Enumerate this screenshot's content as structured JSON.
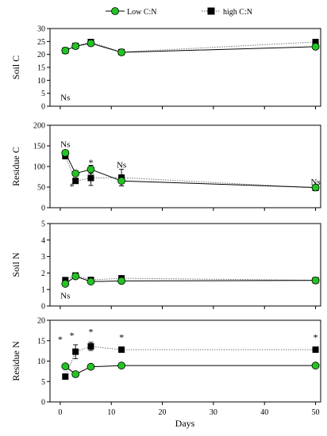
{
  "legend": {
    "placement": "top-center",
    "entries": [
      {
        "label": "Low C:N",
        "marker": "circle",
        "color": "#22c422",
        "line": "solid"
      },
      {
        "label": "high C:N",
        "marker": "square",
        "color": "#000000",
        "line": "dotted"
      }
    ]
  },
  "chart_data": [
    {
      "type": "line",
      "ylabel": "Soil C",
      "ylim": [
        0,
        30
      ],
      "yticks": [
        0,
        5,
        10,
        15,
        20,
        25,
        30
      ],
      "xlim": [
        -2,
        51
      ],
      "series": [
        {
          "name": "Low C:N",
          "x": [
            1,
            3,
            6,
            12,
            50
          ],
          "y": [
            21.5,
            23.2,
            24.3,
            20.8,
            23.0
          ],
          "err": [
            0.8,
            0.6,
            0.8,
            0.7,
            0.7
          ]
        },
        {
          "name": "high C:N",
          "x": [
            1,
            3,
            6,
            12,
            50
          ],
          "y": [
            21.5,
            23.3,
            24.8,
            20.9,
            24.8
          ],
          "err": [
            0.9,
            0.7,
            0.9,
            0.8,
            1.0
          ]
        }
      ],
      "annotations": [
        {
          "text": "Ns",
          "x": 1,
          "y": 3.5
        }
      ]
    },
    {
      "type": "line",
      "ylabel": "Residue C",
      "ylim": [
        0,
        200
      ],
      "yticks": [
        0,
        50,
        100,
        150,
        200
      ],
      "xlim": [
        -2,
        51
      ],
      "series": [
        {
          "name": "Low C:N",
          "x": [
            1,
            3,
            6,
            12,
            50
          ],
          "y": [
            133,
            83,
            93,
            65,
            49
          ],
          "err": [
            4,
            5,
            10,
            12,
            4
          ]
        },
        {
          "name": "high C:N",
          "x": [
            1,
            3,
            6,
            12,
            50
          ],
          "y": [
            125,
            65,
            72,
            73,
            48
          ],
          "err": [
            5,
            4,
            18,
            20,
            5
          ]
        }
      ],
      "annotations": [
        {
          "text": "Ns",
          "x": 1,
          "y": 155
        },
        {
          "text": "*",
          "x": 6,
          "y": 110
        },
        {
          "text": "*",
          "x": 2.3,
          "y": 52
        },
        {
          "text": "Ns",
          "x": 12,
          "y": 105
        },
        {
          "text": "Ns",
          "x": 50,
          "y": 63
        }
      ]
    },
    {
      "type": "line",
      "ylabel": "Soil N",
      "ylim": [
        0,
        5
      ],
      "yticks": [
        0,
        1,
        2,
        3,
        4,
        5
      ],
      "xlim": [
        -2,
        51
      ],
      "series": [
        {
          "name": "Low C:N",
          "x": [
            1,
            3,
            6,
            12,
            50
          ],
          "y": [
            1.35,
            1.8,
            1.48,
            1.52,
            1.55
          ],
          "err": [
            0.1,
            0.1,
            0.06,
            0.06,
            0.08
          ]
        },
        {
          "name": "high C:N",
          "x": [
            1,
            3,
            6,
            12,
            50
          ],
          "y": [
            1.57,
            1.85,
            1.58,
            1.68,
            1.56
          ],
          "err": [
            0.1,
            0.1,
            0.06,
            0.08,
            0.08
          ]
        }
      ],
      "annotations": [
        {
          "text": "Ns",
          "x": 1,
          "y": 0.65
        }
      ]
    },
    {
      "type": "line",
      "ylabel": "Residue N",
      "xlabel": "Days",
      "ylim": [
        0,
        20
      ],
      "yticks": [
        0,
        5,
        10,
        15,
        20
      ],
      "xlim": [
        -2,
        51
      ],
      "xticks": [
        0,
        10,
        20,
        30,
        40,
        50
      ],
      "series": [
        {
          "name": "Low C:N",
          "x": [
            1,
            3,
            6,
            12,
            50
          ],
          "y": [
            8.7,
            6.8,
            8.6,
            8.9,
            8.9
          ],
          "err": [
            0.3,
            0.4,
            0.3,
            0.3,
            0.3
          ]
        },
        {
          "name": "high C:N",
          "x": [
            1,
            3,
            6,
            12,
            50
          ],
          "y": [
            6.2,
            12.3,
            13.6,
            12.8,
            12.8
          ],
          "err": [
            0.3,
            1.7,
            1.0,
            0.6,
            0.6
          ]
        }
      ],
      "annotations": [
        {
          "text": "*",
          "x": 0,
          "y": 15.3
        },
        {
          "text": "*",
          "x": 2.3,
          "y": 16.3
        },
        {
          "text": "*",
          "x": 6,
          "y": 17.2
        },
        {
          "text": "*",
          "x": 12,
          "y": 15.8
        },
        {
          "text": "*",
          "x": 50,
          "y": 15.8
        }
      ]
    }
  ]
}
